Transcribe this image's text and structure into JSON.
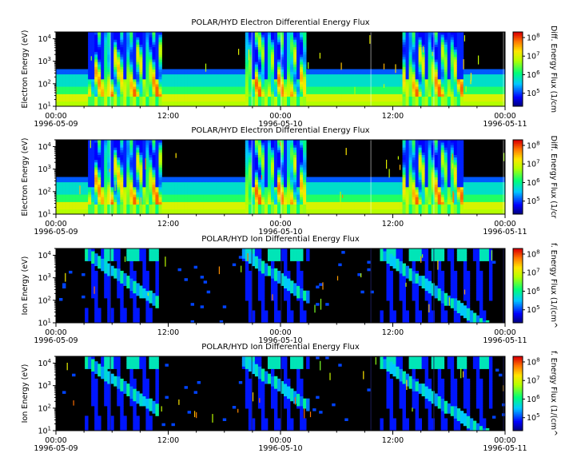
{
  "chart_data": [
    {
      "type": "heatmap",
      "title": "POLAR/HYD  Electron Differential Energy Flux",
      "ylabel": "Electron Energy (eV)",
      "colorbar_label": "Diff. Energy Flux (1/cm",
      "yscale": "log",
      "ylim": [
        10,
        20000
      ],
      "yticks": [
        "10^1",
        "10^2",
        "10^3",
        "10^4"
      ],
      "xticks": [
        "00:00",
        "12:00",
        "00:00",
        "12:00",
        "00:00"
      ],
      "xtick_dates": [
        "1996-05-09",
        "",
        "1996-05-10",
        "",
        "1996-05-11"
      ],
      "colorbar_ticks": [
        "10^5",
        "10^6",
        "10^7",
        "10^8"
      ],
      "colorscale": "rainbow (blue→cyan→green→yellow→red)",
      "background_color": "#000000"
    },
    {
      "type": "heatmap",
      "title": "POLAR/HYD  Electron Differential Energy Flux",
      "ylabel": "Electron Energy (eV)",
      "colorbar_label": "Diff. Energy Flux (1/cr",
      "yscale": "log",
      "ylim": [
        10,
        20000
      ],
      "yticks": [
        "10^1",
        "10^2",
        "10^3",
        "10^4"
      ],
      "xticks": [
        "00:00",
        "12:00",
        "00:00",
        "12:00",
        "00:00"
      ],
      "xtick_dates": [
        "1996-05-09",
        "",
        "1996-05-10",
        "",
        "1996-05-11"
      ],
      "colorbar_ticks": [
        "10^5",
        "10^6",
        "10^7",
        "10^8"
      ],
      "colorscale": "rainbow (blue→cyan→green→yellow→red)",
      "background_color": "#000000"
    },
    {
      "type": "heatmap",
      "title": "POLAR/HYD  Ion Differential Energy Flux",
      "ylabel": "Ion Energy (eV)",
      "colorbar_label": "f. Energy Flux (1/(cm^",
      "yscale": "log",
      "ylim": [
        10,
        20000
      ],
      "yticks": [
        "10^1",
        "10^2",
        "10^3",
        "10^4"
      ],
      "xticks": [
        "00:00",
        "12:00",
        "00:00",
        "12:00",
        "00:00"
      ],
      "xtick_dates": [
        "1996-05-09",
        "",
        "1996-05-10",
        "",
        "1996-05-11"
      ],
      "colorbar_ticks": [
        "10^5",
        "10^6",
        "10^7",
        "10^8"
      ],
      "colorscale": "rainbow (blue→cyan→green→yellow→red)",
      "background_color": "#000000"
    },
    {
      "type": "heatmap",
      "title": "POLAR/HYD  Ion Differential Energy Flux",
      "ylabel": "Ion Energy (eV)",
      "colorbar_label": "f. Energy Flux (1/(cm^",
      "yscale": "log",
      "ylim": [
        10,
        20000
      ],
      "yticks": [
        "10^1",
        "10^2",
        "10^3",
        "10^4"
      ],
      "xticks": [
        "00:00",
        "12:00",
        "00:00",
        "12:00",
        "00:00"
      ],
      "xtick_dates": [
        "1996-05-09",
        "",
        "1996-05-10",
        "",
        "1996-05-11"
      ],
      "colorbar_ticks": [
        "10^5",
        "10^6",
        "10^7",
        "10^8"
      ],
      "colorscale": "rainbow (blue→cyan→green→yellow→red)",
      "background_color": "#000000"
    }
  ]
}
